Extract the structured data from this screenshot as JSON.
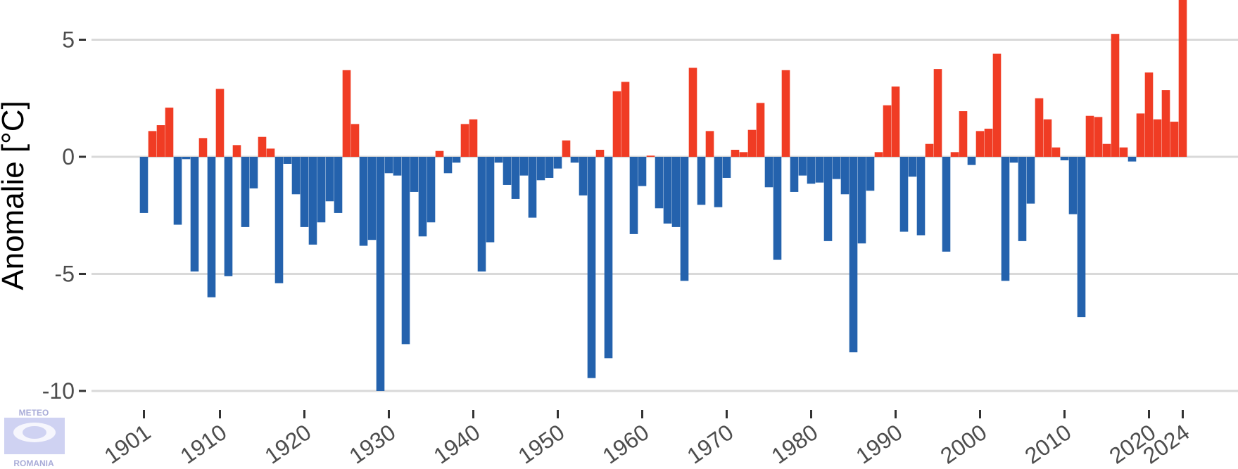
{
  "chart_data": {
    "type": "bar",
    "title": "",
    "xlabel": "",
    "ylabel": "Anomalie [°C]",
    "ylim": [
      -10,
      6.6
    ],
    "yticks": [
      5,
      0,
      -5,
      -10
    ],
    "ytick_labels": [
      "5",
      "0",
      "-5",
      "-10"
    ],
    "xticks": [
      1901,
      1910,
      1920,
      1930,
      1940,
      1950,
      1960,
      1970,
      1980,
      1990,
      2000,
      2010,
      2020,
      2024
    ],
    "xtick_labels": [
      "1901",
      "1910",
      "1920",
      "1930",
      "1940",
      "1950",
      "1960",
      "1970",
      "1980",
      "1990",
      "2000",
      "2010",
      "2020",
      "2024"
    ],
    "grid": "horizontal",
    "colors": {
      "positive": "#f03c24",
      "negative": "#2462ad",
      "grid": "#d9d9d9",
      "axis_text": "#4d4d4d"
    },
    "x": [
      1901,
      1902,
      1903,
      1904,
      1905,
      1906,
      1907,
      1908,
      1909,
      1910,
      1911,
      1912,
      1913,
      1914,
      1915,
      1916,
      1917,
      1918,
      1919,
      1920,
      1921,
      1922,
      1923,
      1924,
      1925,
      1926,
      1927,
      1928,
      1929,
      1930,
      1931,
      1932,
      1933,
      1934,
      1935,
      1936,
      1937,
      1938,
      1939,
      1940,
      1941,
      1942,
      1943,
      1944,
      1945,
      1946,
      1947,
      1948,
      1949,
      1950,
      1951,
      1952,
      1953,
      1954,
      1955,
      1956,
      1957,
      1958,
      1959,
      1960,
      1961,
      1962,
      1963,
      1964,
      1965,
      1966,
      1967,
      1968,
      1969,
      1970,
      1971,
      1972,
      1973,
      1974,
      1975,
      1976,
      1977,
      1978,
      1979,
      1980,
      1981,
      1982,
      1983,
      1984,
      1985,
      1986,
      1987,
      1988,
      1989,
      1990,
      1991,
      1992,
      1993,
      1994,
      1995,
      1996,
      1997,
      1998,
      1999,
      2000,
      2001,
      2002,
      2003,
      2004,
      2005,
      2006,
      2007,
      2008,
      2009,
      2010,
      2011,
      2012,
      2013,
      2014,
      2015,
      2016,
      2017,
      2018,
      2019,
      2020,
      2021,
      2022,
      2023,
      2024
    ],
    "values": [
      -2.4,
      1.1,
      1.35,
      2.1,
      -2.9,
      -0.1,
      -4.9,
      0.8,
      -6.0,
      2.9,
      -5.1,
      0.5,
      -3.0,
      -1.35,
      0.85,
      0.35,
      -5.4,
      -0.3,
      -1.6,
      -3.0,
      -3.75,
      -2.8,
      -1.9,
      -2.4,
      3.7,
      1.4,
      -3.8,
      -3.55,
      -10.0,
      -0.7,
      -0.8,
      -8.0,
      -1.5,
      -3.4,
      -2.8,
      0.25,
      -0.7,
      -0.25,
      1.4,
      1.6,
      -4.9,
      -3.65,
      -0.25,
      -1.2,
      -1.8,
      -0.8,
      -2.6,
      -1.0,
      -0.9,
      -0.5,
      0.7,
      -0.25,
      -1.65,
      -9.45,
      0.3,
      -8.6,
      2.8,
      3.2,
      -3.3,
      -1.25,
      0.05,
      -2.2,
      -2.85,
      -3.0,
      -5.3,
      3.8,
      -2.05,
      1.1,
      -2.15,
      -0.9,
      0.3,
      0.2,
      1.15,
      2.3,
      -1.3,
      -4.4,
      3.7,
      -1.5,
      -0.8,
      -1.15,
      -1.1,
      -3.6,
      -0.95,
      -1.6,
      -8.35,
      -3.7,
      -1.45,
      0.2,
      2.2,
      3.0,
      -3.2,
      -0.85,
      -3.35,
      0.55,
      3.75,
      -4.05,
      0.2,
      1.95,
      -0.35,
      1.1,
      1.2,
      4.4,
      -5.3,
      -0.25,
      -3.6,
      -2.0,
      2.5,
      1.6,
      0.4,
      -0.15,
      -2.45,
      -6.85,
      1.75,
      1.7,
      0.55,
      5.25,
      0.4,
      -0.2,
      1.85,
      3.6,
      1.6,
      2.85,
      1.5,
      6.7
    ]
  },
  "logo": {
    "top_text": "METEO",
    "bottom_text": "ROMANIA"
  }
}
